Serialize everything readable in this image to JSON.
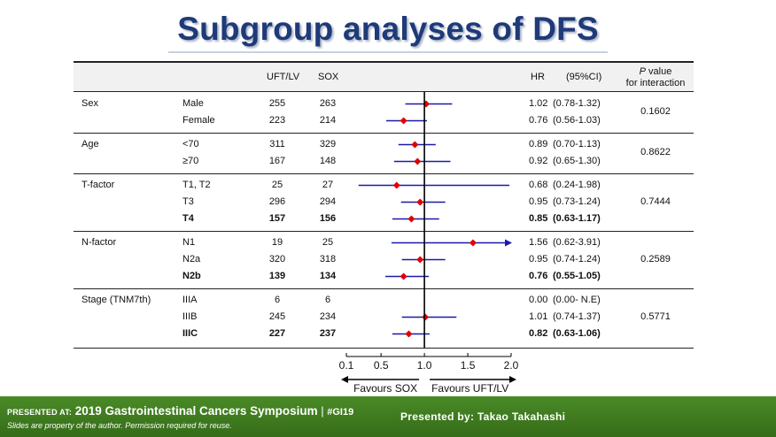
{
  "title": "Subgroup analyses of DFS",
  "headers": {
    "arm_a": "UFT/LV",
    "arm_b": "SOX",
    "hr": "HR",
    "ci": "(95%CI)",
    "p_italic": "P",
    "p_rest": " value",
    "p_line2": "for interaction"
  },
  "groups": [
    {
      "name": "Sex",
      "p": "0.1602",
      "rows": [
        {
          "label": "Male",
          "a": "255",
          "b": "263",
          "hr": 1.02,
          "lo": 0.78,
          "hi": 1.32,
          "hr_text": "1.02",
          "ci_text": "(0.78-1.32)",
          "bold": false
        },
        {
          "label": "Female",
          "a": "223",
          "b": "214",
          "hr": 0.76,
          "lo": 0.56,
          "hi": 1.03,
          "hr_text": "0.76",
          "ci_text": "(0.56-1.03)",
          "bold": false
        }
      ]
    },
    {
      "name": "Age",
      "p": "0.8622",
      "rows": [
        {
          "label": "<70",
          "a": "311",
          "b": "329",
          "hr": 0.89,
          "lo": 0.7,
          "hi": 1.13,
          "hr_text": "0.89",
          "ci_text": "(0.70-1.13)",
          "bold": false
        },
        {
          "label": "≥70",
          "a": "167",
          "b": "148",
          "hr": 0.92,
          "lo": 0.65,
          "hi": 1.3,
          "hr_text": "0.92",
          "ci_text": "(0.65-1.30)",
          "bold": false
        }
      ]
    },
    {
      "name": "T-factor",
      "p": "0.7444",
      "rows": [
        {
          "label": "T1, T2",
          "a": "25",
          "b": "27",
          "hr": 0.68,
          "lo": 0.24,
          "hi": 1.98,
          "hr_text": "0.68",
          "ci_text": "(0.24-1.98)",
          "bold": false
        },
        {
          "label": "T3",
          "a": "296",
          "b": "294",
          "hr": 0.95,
          "lo": 0.73,
          "hi": 1.24,
          "hr_text": "0.95",
          "ci_text": "(0.73-1.24)",
          "bold": false
        },
        {
          "label": "T4",
          "a": "157",
          "b": "156",
          "hr": 0.85,
          "lo": 0.63,
          "hi": 1.17,
          "hr_text": "0.85",
          "ci_text": "(0.63-1.17)",
          "bold": true
        }
      ]
    },
    {
      "name": "N-factor",
      "p": "0.2589",
      "rows": [
        {
          "label": "N1",
          "a": "19",
          "b": "25",
          "hr": 1.56,
          "lo": 0.62,
          "hi": 3.91,
          "hr_text": "1.56",
          "ci_text": "(0.62-3.91)",
          "bold": false,
          "arrow": true
        },
        {
          "label": "N2a",
          "a": "320",
          "b": "318",
          "hr": 0.95,
          "lo": 0.74,
          "hi": 1.24,
          "hr_text": "0.95",
          "ci_text": "(0.74-1.24)",
          "bold": false
        },
        {
          "label": "N2b",
          "a": "139",
          "b": "134",
          "hr": 0.76,
          "lo": 0.55,
          "hi": 1.05,
          "hr_text": "0.76",
          "ci_text": "(0.55-1.05)",
          "bold": true
        }
      ]
    },
    {
      "name": "Stage (TNM7th)",
      "p": "0.5771",
      "rows": [
        {
          "label": "IIIA",
          "a": "6",
          "b": "6",
          "hr": null,
          "lo": null,
          "hi": null,
          "hr_text": "0.00",
          "ci_text": "(0.00- N.E)",
          "bold": false
        },
        {
          "label": "IIIB",
          "a": "245",
          "b": "234",
          "hr": 1.01,
          "lo": 0.74,
          "hi": 1.37,
          "hr_text": "1.01",
          "ci_text": "(0.74-1.37)",
          "bold": false
        },
        {
          "label": "IIIC",
          "a": "227",
          "b": "237",
          "hr": 0.82,
          "lo": 0.63,
          "hi": 1.06,
          "hr_text": "0.82",
          "ci_text": "(0.63-1.06)",
          "bold": true
        }
      ]
    }
  ],
  "axis": {
    "ticks": [
      0.1,
      0.5,
      1.0,
      1.5,
      2.0
    ],
    "tick_labels": [
      "0.1",
      "0.5",
      "1.0",
      "1.5",
      "2.0"
    ],
    "xlim": [
      0.1,
      2.0
    ],
    "reference": 1.0,
    "favours_left": "Favours SOX",
    "favours_right": "Favours UFT/LV"
  },
  "colors": {
    "marker": "#e00000",
    "ci_line": "#1a1aa8",
    "title": "#1f3a78"
  },
  "footer": {
    "presented_at": "PRESENTED AT:",
    "meeting": "2019 Gastrointestinal Cancers Symposium",
    "separator": "|",
    "hashtag": "#GI19",
    "disclaimer": "Slides are property of the author. Permission required for reuse.",
    "presenter": "Presented by: Takao Takahashi"
  }
}
